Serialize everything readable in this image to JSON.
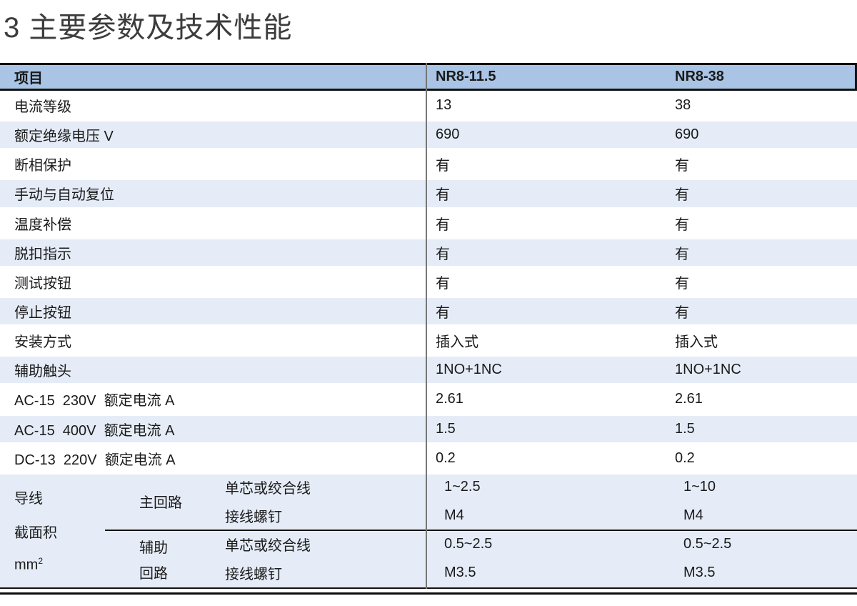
{
  "title": "3 主要参数及技术性能",
  "colors": {
    "header_bg": "#a9c4e4",
    "alt_row_bg": "#e5ecf7",
    "column_divider_gray": "#767676",
    "rule_black": "#121212"
  },
  "table": {
    "headers": {
      "item": "项目",
      "col1": "NR8-11.5",
      "col2": "NR8-38"
    },
    "rows": [
      {
        "label": "电流等级",
        "v1": "13",
        "v2": "38"
      },
      {
        "label": "额定绝缘电压 V",
        "v1": "690",
        "v2": "690"
      },
      {
        "label": "断相保护",
        "v1": "有",
        "v2": "有"
      },
      {
        "label": "手动与自动复位",
        "v1": "有",
        "v2": "有"
      },
      {
        "label": "温度补偿",
        "v1": "有",
        "v2": "有"
      },
      {
        "label": "脱扣指示",
        "v1": "有",
        "v2": "有"
      },
      {
        "label": "测试按钮",
        "v1": "有",
        "v2": "有"
      },
      {
        "label": "停止按钮",
        "v1": "有",
        "v2": "有"
      },
      {
        "label": "安装方式",
        "v1": "插入式",
        "v2": "插入式"
      },
      {
        "label": "辅助触头",
        "v1": "1NO+1NC",
        "v2": "1NO+1NC"
      },
      {
        "label": "AC-15  230V  额定电流 A",
        "v1": "2.61",
        "v2": "2.61"
      },
      {
        "label": "AC-15  400V  额定电流 A",
        "v1": "1.5",
        "v2": "1.5"
      },
      {
        "label": "DC-13  220V  额定电流 A",
        "v1": "0.2",
        "v2": "0.2"
      }
    ],
    "wire": {
      "label_line1": "导线",
      "label_line2": "截面积",
      "label_line3_base": "mm",
      "label_line3_sup": "2",
      "main": {
        "name": "主回路",
        "row1": {
          "param": "单芯或绞合线",
          "v1": "1~2.5",
          "v2": "1~10"
        },
        "row2": {
          "param": "接线螺钉",
          "v1": "M4",
          "v2": "M4"
        }
      },
      "aux": {
        "name_line1": "辅助",
        "name_line2": "回路",
        "row1": {
          "param": "单芯或绞合线",
          "v1": "0.5~2.5",
          "v2": "0.5~2.5"
        },
        "row2": {
          "param": "接线螺钉",
          "v1": "M3.5",
          "v2": "M3.5"
        }
      }
    }
  }
}
